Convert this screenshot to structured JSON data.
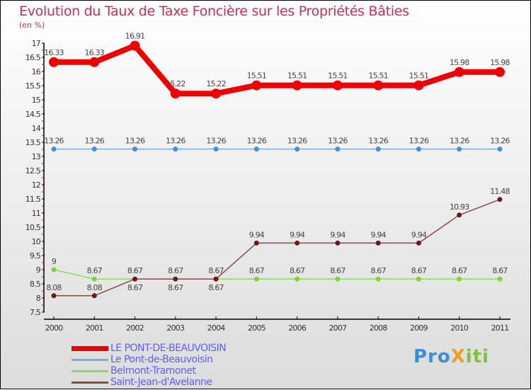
{
  "chart_data": {
    "type": "line",
    "title": "Evolution du Taux de Taxe Foncière sur les Propriétés Bâties",
    "ylabel": "(en %)",
    "xlabel": "",
    "x": [
      "2000",
      "2001",
      "2002",
      "2003",
      "2004",
      "2005",
      "2006",
      "2007",
      "2008",
      "2009",
      "2010",
      "2011"
    ],
    "ylim": [
      7.5,
      17
    ],
    "yticks": [
      "7.5",
      "8",
      "8.5",
      "9",
      "9.5",
      "10",
      "10.5",
      "11",
      "11.5",
      "12",
      "12.5",
      "13",
      "13.5",
      "14",
      "14.5",
      "15",
      "15.5",
      "16",
      "16.5",
      "17"
    ],
    "legend_position": "bottom-left",
    "series": [
      {
        "name": "LE PONT-DE-BEAUVOISIN",
        "color": "#ee0000",
        "values": [
          16.33,
          16.33,
          16.91,
          15.22,
          15.22,
          15.51,
          15.51,
          15.51,
          15.51,
          15.51,
          15.98,
          15.98
        ]
      },
      {
        "name": "Le Pont-de-Beauvoisin",
        "color": "#7aaed6",
        "values": [
          13.26,
          13.26,
          13.26,
          13.26,
          13.26,
          13.26,
          13.26,
          13.26,
          13.26,
          13.26,
          13.26,
          13.26
        ]
      },
      {
        "name": "Belmont-Tramonet",
        "color": "#90d860",
        "values": [
          9,
          8.67,
          8.67,
          8.67,
          8.67,
          8.67,
          8.67,
          8.67,
          8.67,
          8.67,
          8.67,
          8.67
        ]
      },
      {
        "name": "Saint-Jean-d'Avelanne",
        "color": "#8b4a4a",
        "values": [
          8.08,
          8.08,
          8.67,
          8.67,
          8.67,
          9.94,
          9.94,
          9.94,
          9.94,
          9.94,
          10.93,
          11.48
        ]
      }
    ]
  },
  "logo": "ProXiti"
}
